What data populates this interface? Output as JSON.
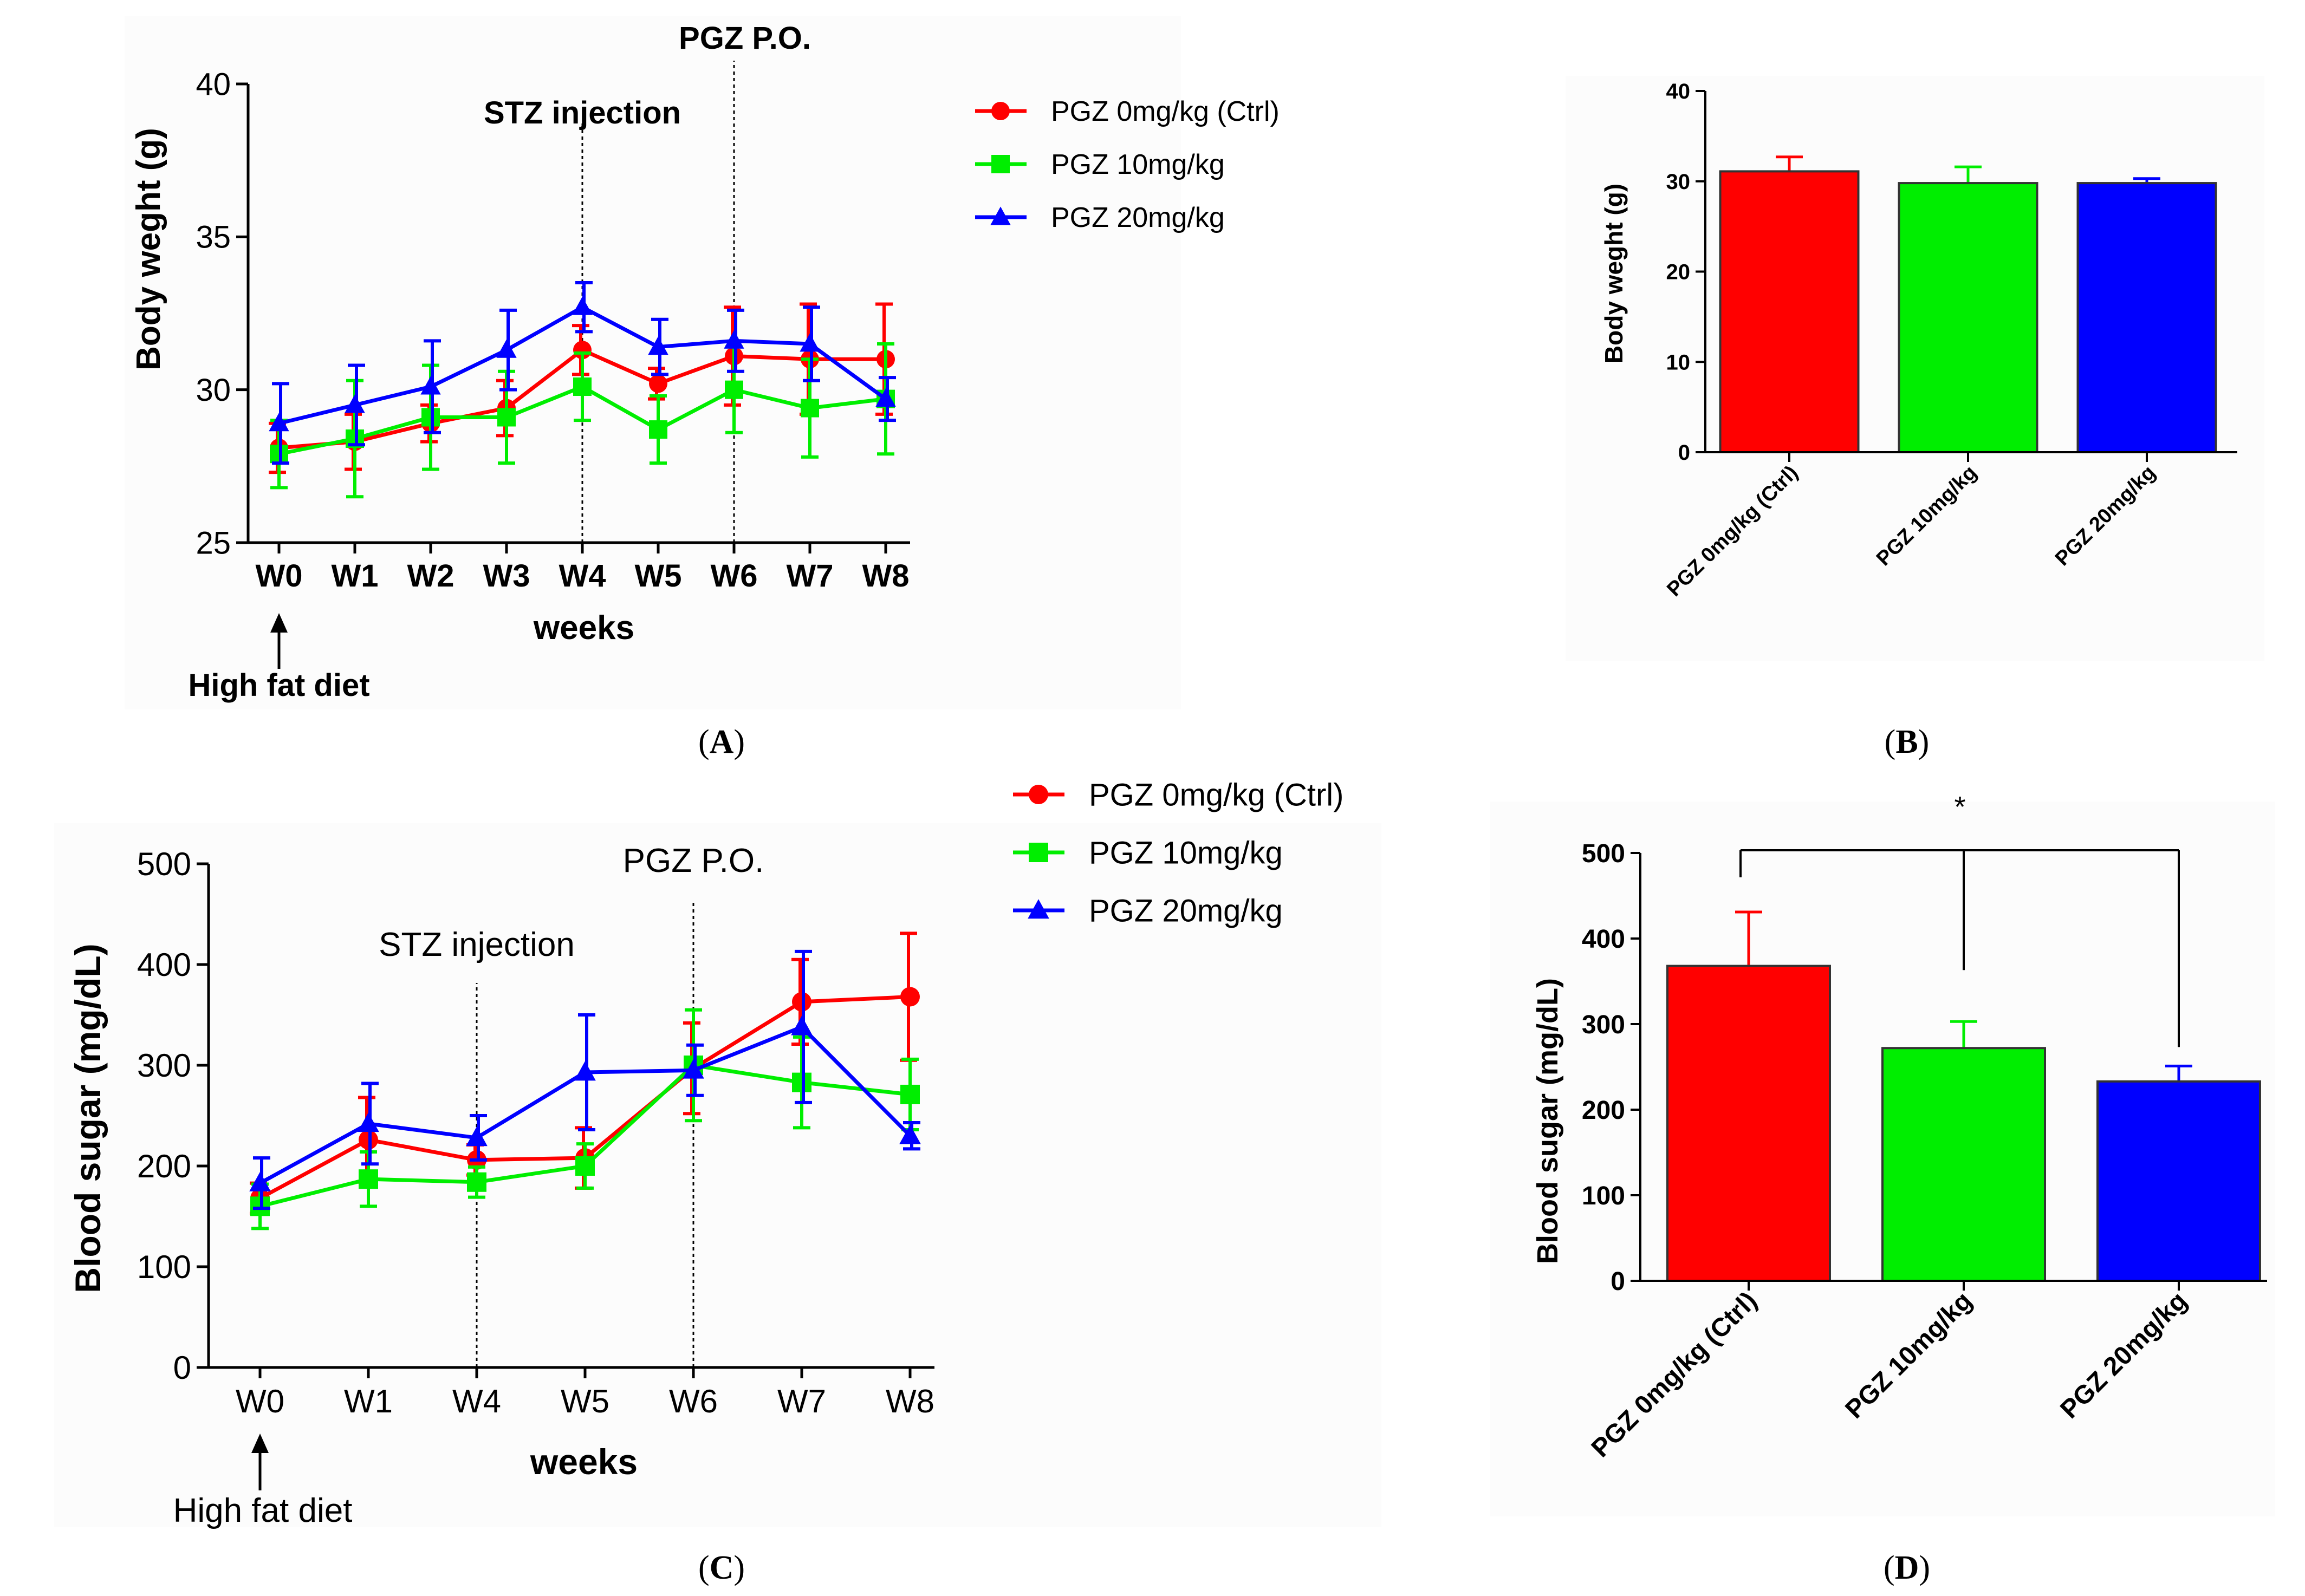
{
  "colors": {
    "ctrl": "#ff0000",
    "pgz10": "#00ee00",
    "pgz20": "#0000ff",
    "axis": "#000000",
    "panel_bg": "#fcfcfc"
  },
  "panel_labels": {
    "a": "A",
    "b": "B",
    "c": "C",
    "d": "D"
  },
  "chart_data": [
    {
      "id": "A",
      "type": "line",
      "title": "",
      "xlabel": "weeks",
      "ylabel": "Body weght (g)",
      "categories": [
        "W0",
        "W1",
        "W2",
        "W3",
        "W4",
        "W5",
        "W6",
        "W7",
        "W8"
      ],
      "ylim": [
        25,
        40
      ],
      "yticks": [
        25,
        30,
        35,
        40
      ],
      "series": [
        {
          "name": "PGZ 0mg/kg (Ctrl)",
          "marker": "circle",
          "color": "#ff0000",
          "values": [
            28.1,
            28.3,
            28.9,
            29.4,
            31.3,
            30.2,
            31.1,
            31.0,
            31.0
          ],
          "errors": [
            0.8,
            0.9,
            0.6,
            0.9,
            0.8,
            0.5,
            1.6,
            1.8,
            1.8
          ]
        },
        {
          "name": "PGZ 10mg/kg",
          "marker": "square",
          "color": "#00ee00",
          "values": [
            27.9,
            28.4,
            29.1,
            29.1,
            30.1,
            28.7,
            30.0,
            29.4,
            29.7
          ],
          "errors": [
            1.1,
            1.9,
            1.7,
            1.5,
            1.1,
            1.1,
            1.4,
            1.6,
            1.8
          ]
        },
        {
          "name": "PGZ 20mg/kg",
          "marker": "triangle",
          "color": "#0000ff",
          "values": [
            28.9,
            29.5,
            30.1,
            31.3,
            32.7,
            31.4,
            31.6,
            31.5,
            29.7
          ],
          "errors": [
            1.3,
            1.3,
            1.5,
            1.3,
            0.8,
            0.9,
            1.0,
            1.2,
            0.7
          ]
        }
      ],
      "annotations": [
        {
          "text": "STZ injection",
          "at": "W4"
        },
        {
          "text": "PGZ P.O.",
          "at": "W6"
        },
        {
          "text": "High fat diet",
          "at": "W0"
        }
      ]
    },
    {
      "id": "B",
      "type": "bar",
      "ylabel": "Body weght (g)",
      "categories": [
        "PGZ 0mg/kg (Ctrl)",
        "PGZ 10mg/kg",
        "PGZ 20mg/kg"
      ],
      "values": [
        31.1,
        29.8,
        29.8
      ],
      "errors": [
        1.6,
        1.8,
        0.5
      ],
      "colors": [
        "#ff0000",
        "#00ee00",
        "#0000ff"
      ],
      "ylim": [
        0,
        40
      ],
      "yticks": [
        0,
        10,
        20,
        30,
        40
      ]
    },
    {
      "id": "C",
      "type": "line",
      "xlabel": "weeks",
      "ylabel": "Blood sugar (mg/dL)",
      "categories": [
        "W0",
        "W1",
        "W4",
        "W5",
        "W6",
        "W7",
        "W8"
      ],
      "ylim": [
        0,
        500
      ],
      "yticks": [
        0,
        100,
        200,
        300,
        400,
        500
      ],
      "series": [
        {
          "name": "PGZ 0mg/kg (Ctrl)",
          "marker": "circle",
          "color": "#ff0000",
          "values": [
            168,
            226,
            206,
            208,
            297,
            363,
            368
          ],
          "errors": [
            15,
            42,
            15,
            30,
            45,
            42,
            63
          ]
        },
        {
          "name": "PGZ 10mg/kg",
          "marker": "square",
          "color": "#00ee00",
          "values": [
            160,
            187,
            184,
            200,
            300,
            283,
            271
          ],
          "errors": [
            22,
            27,
            15,
            22,
            55,
            45,
            35
          ]
        },
        {
          "name": "PGZ 20mg/kg",
          "marker": "triangle",
          "color": "#0000ff",
          "values": [
            183,
            242,
            228,
            293,
            295,
            338,
            230
          ],
          "errors": [
            25,
            40,
            22,
            57,
            25,
            75,
            13
          ]
        }
      ],
      "annotations": [
        {
          "text": "STZ  injection",
          "at": "W4"
        },
        {
          "text": "PGZ P.O.",
          "at": "W6"
        },
        {
          "text": "High fat diet",
          "at": "W0"
        }
      ]
    },
    {
      "id": "D",
      "type": "bar",
      "ylabel": "Blood sugar (mg/dL)",
      "categories": [
        "PGZ 0mg/kg (Ctrl)",
        "PGZ 10mg/kg",
        "PGZ 20mg/kg"
      ],
      "values": [
        368,
        272,
        233
      ],
      "errors": [
        63,
        31,
        18
      ],
      "colors": [
        "#ff0000",
        "#00ee00",
        "#0000ff"
      ],
      "ylim": [
        0,
        500
      ],
      "yticks": [
        0,
        100,
        200,
        300,
        400,
        500
      ],
      "significance": "*"
    }
  ]
}
